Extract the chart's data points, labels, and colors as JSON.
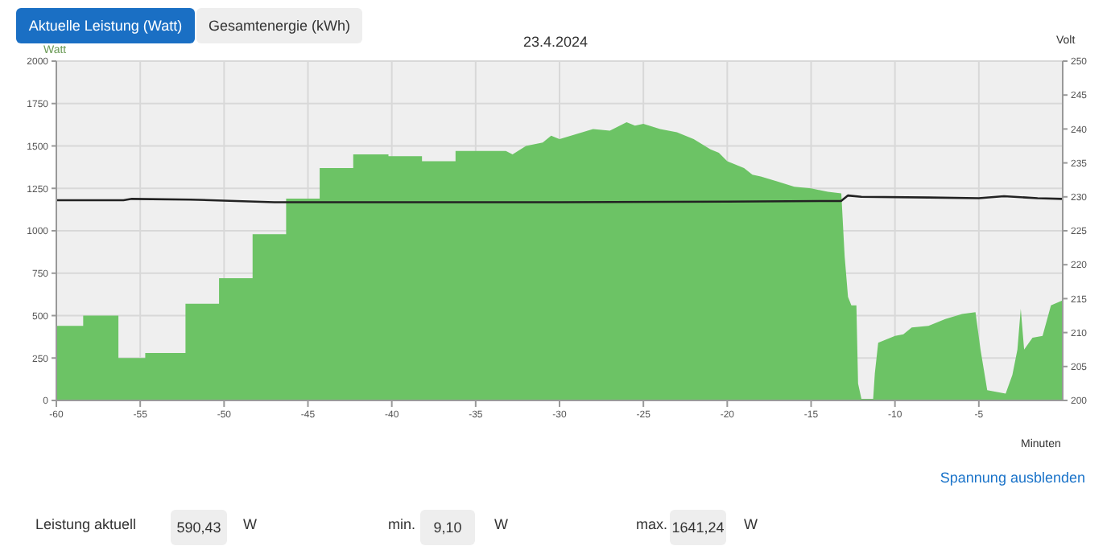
{
  "chart_data": {
    "type": "area",
    "title": "23.4.2024",
    "xlabel": "Minuten",
    "ylabel": "Watt",
    "y2label": "Volt",
    "xlim": [
      -60,
      0
    ],
    "xticks": [
      -60,
      -55,
      -50,
      -45,
      -40,
      -35,
      -30,
      -25,
      -20,
      -15,
      -10,
      -5
    ],
    "ylim": [
      0,
      2000
    ],
    "yticks": [
      0,
      250,
      500,
      750,
      1000,
      1250,
      1500,
      1750,
      2000
    ],
    "y2lim": [
      200,
      250
    ],
    "y2ticks": [
      200,
      205,
      210,
      215,
      220,
      225,
      230,
      235,
      240,
      245,
      250
    ],
    "grid": true,
    "legend": false,
    "marker": "none",
    "series": [
      {
        "color": "#6cc365",
        "x": [
          -60,
          -58.4,
          -58.4,
          -56.3,
          -56.3,
          -54.7,
          -54.7,
          -52.3,
          -52.3,
          -50.3,
          -50.3,
          -48.3,
          -48.3,
          -46.3,
          -46.3,
          -44.3,
          -44.3,
          -42.3,
          -42.3,
          -40.2,
          -40.2,
          -38.2,
          -38.2,
          -36.2,
          -36.2,
          -33.2,
          -32.8,
          -32,
          -31,
          -30.5,
          -30,
          -29,
          -28,
          -27,
          -26,
          -25.5,
          -25,
          -24,
          -23,
          -22,
          -21,
          -20.5,
          -20,
          -19,
          -18.5,
          -18,
          -17,
          -16,
          -15,
          -14,
          -13.2,
          -13,
          -12.8,
          -12.6,
          -12.3,
          -12.2,
          -12,
          -11.3,
          -11.2,
          -11,
          -10,
          -9.5,
          -9,
          -8,
          -7,
          -6,
          -5.2,
          -4.9,
          -4.5,
          -3.4,
          -3,
          -2.7,
          -2.5,
          -2.3,
          -1.8,
          -1.2,
          -0.7,
          0
        ],
        "values": [
          440,
          440,
          500,
          500,
          250,
          250,
          280,
          280,
          570,
          570,
          720,
          720,
          980,
          980,
          1190,
          1190,
          1370,
          1370,
          1450,
          1450,
          1440,
          1440,
          1410,
          1410,
          1470,
          1470,
          1450,
          1500,
          1520,
          1560,
          1540,
          1570,
          1600,
          1590,
          1640,
          1620,
          1630,
          1600,
          1580,
          1540,
          1480,
          1460,
          1410,
          1370,
          1330,
          1320,
          1290,
          1260,
          1250,
          1230,
          1220,
          850,
          610,
          560,
          560,
          100,
          10,
          10,
          160,
          340,
          380,
          390,
          430,
          440,
          480,
          510,
          520,
          300,
          60,
          40,
          150,
          300,
          540,
          300,
          370,
          380,
          560,
          590
        ]
      },
      {
        "type": "line",
        "axis": "y2",
        "color": "#222222",
        "x": [
          -60,
          -56,
          -55.5,
          -52,
          -47,
          -40,
          -30,
          -20,
          -13.2,
          -12.8,
          -12,
          -8,
          -5,
          -3.5,
          -1.5,
          0
        ],
        "values": [
          229.5,
          229.5,
          229.7,
          229.6,
          229.2,
          229.2,
          229.2,
          229.3,
          229.4,
          230.2,
          230,
          229.9,
          229.8,
          230.1,
          229.8,
          229.7
        ]
      }
    ],
    "annotations": [
      "Aktuelle Leistung (Watt)",
      "Gesamtenergie (kWh)",
      "Spannung ausblenden",
      "Leistung aktuell",
      "590,43",
      "W",
      "min.",
      "9,10",
      "W",
      "max.",
      "1641,24",
      "W"
    ]
  }
}
